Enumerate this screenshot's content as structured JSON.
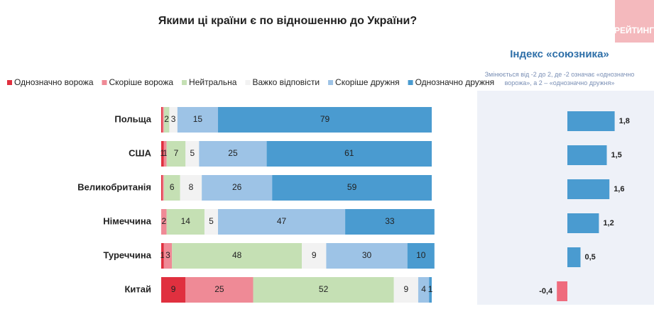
{
  "chart_data": [
    {
      "type": "bar",
      "orientation": "horizontal",
      "stacked": true,
      "title": "Якими ці країни є по відношенню до України?",
      "categories": [
        "Польща",
        "США",
        "Великобританія",
        "Німеччина",
        "Туреччина",
        "Китай"
      ],
      "series": [
        {
          "name": "Однозначно ворожа",
          "color": "#e0303f",
          "values": [
            0.5,
            1,
            0.5,
            0,
            1,
            9
          ],
          "value_labels": [
            null,
            "1",
            null,
            null,
            "1",
            "9"
          ]
        },
        {
          "name": "Скоріше ворожа",
          "color": "#ef8a96",
          "values": [
            0.5,
            1,
            0.5,
            2,
            3,
            25
          ],
          "value_labels": [
            null,
            "1",
            null,
            "2",
            "3",
            "25"
          ]
        },
        {
          "name": "Нейтральна",
          "color": "#c5e0b4",
          "values": [
            2,
            7,
            6,
            14,
            48,
            52
          ],
          "value_labels": [
            "2",
            "7",
            "6",
            "14",
            "48",
            "52"
          ]
        },
        {
          "name": "Важко відповісти",
          "color": "#f2f2f2",
          "values": [
            3,
            5,
            8,
            5,
            9,
            9
          ],
          "value_labels": [
            "3",
            "5",
            "8",
            "5",
            "9",
            "9"
          ]
        },
        {
          "name": "Скоріше дружня",
          "color": "#9dc3e6",
          "values": [
            15,
            25,
            26,
            47,
            30,
            4
          ],
          "value_labels": [
            "15",
            "25",
            "26",
            "47",
            "30",
            "4"
          ]
        },
        {
          "name": "Однозначно дружня",
          "color": "#4a9bd0",
          "values": [
            79,
            61,
            59,
            33,
            10,
            1
          ],
          "value_labels": [
            "79",
            "61",
            "59",
            "33",
            "10",
            "1"
          ]
        }
      ],
      "xlim": [
        0,
        100
      ],
      "legend": "top"
    },
    {
      "type": "bar",
      "orientation": "horizontal",
      "title": "Індекс «союзника»",
      "subtitle": "Змінюється від -2 до 2, де -2 означає «однозначно ворожа», а 2 – «однозначно дружня»",
      "values": [
        1.8,
        1.5,
        1.6,
        1.2,
        0.5,
        -0.4
      ],
      "value_labels": [
        "1,8",
        "1,5",
        "1,6",
        "1,2",
        "0,5",
        "-0,4"
      ],
      "color": "#4a9bd0",
      "negative_color": "#ef6b7d",
      "xlim": [
        -2,
        2
      ]
    }
  ],
  "logo": "РЕЙТИНГ"
}
